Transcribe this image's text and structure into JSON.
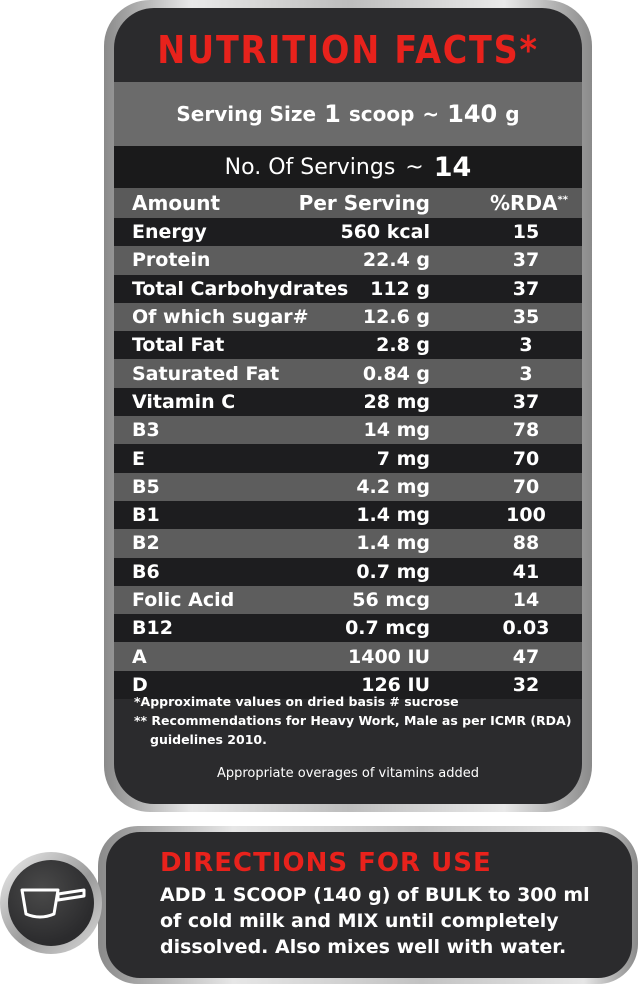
{
  "title": "NUTRITION FACTS*",
  "serving_size": {
    "label": "Serving Size",
    "amount": "1",
    "unit": "scoop",
    "approx": "~",
    "weight": "140",
    "weight_unit": "g"
  },
  "servings": {
    "label": "No. Of Servings",
    "approx": "~",
    "value": "14"
  },
  "table": {
    "headers": {
      "amount": "Amount",
      "per_serving": "Per Serving",
      "rda": "%RDA",
      "rda_mark": "**"
    },
    "rows": [
      {
        "name": "Energy",
        "value": "560 kcal",
        "rda": "15"
      },
      {
        "name": "Protein",
        "value": "22.4 g",
        "rda": "37"
      },
      {
        "name": "Total Carbohydrates",
        "value": "112 g",
        "rda": "37"
      },
      {
        "name": "Of which sugar#",
        "value": "12.6 g",
        "rda": "35"
      },
      {
        "name": "Total Fat",
        "value": "2.8 g",
        "rda": "3"
      },
      {
        "name": "Saturated Fat",
        "value": "0.84 g",
        "rda": "3"
      },
      {
        "name": "Vitamin C",
        "value": "28 mg",
        "rda": "37"
      },
      {
        "name": "B3",
        "value": "14 mg",
        "rda": "78"
      },
      {
        "name": "E",
        "value": "7 mg",
        "rda": "70"
      },
      {
        "name": "B5",
        "value": "4.2 mg",
        "rda": "70"
      },
      {
        "name": "B1",
        "value": "1.4 mg",
        "rda": "100"
      },
      {
        "name": "B2",
        "value": "1.4 mg",
        "rda": "88"
      },
      {
        "name": "B6",
        "value": "0.7 mg",
        "rda": "41"
      },
      {
        "name": "Folic Acid",
        "value": "56 mcg",
        "rda": "14"
      },
      {
        "name": "B12",
        "value": "0.7 mcg",
        "rda": "0.03"
      },
      {
        "name": "A",
        "value": "1400 IU",
        "rda": "47"
      },
      {
        "name": "D",
        "value": "126 IU",
        "rda": "32"
      }
    ]
  },
  "notes": {
    "approx": "*Approximate values on dried basis # sucrose",
    "rec_line1": "** Recommendations for Heavy Work, Male as per ICMR (RDA)",
    "rec_line2": "guidelines 2010.",
    "overage": "Appropriate overages of vitamins added"
  },
  "directions": {
    "title": "DIRECTIONS FOR USE",
    "line1": "ADD 1 SCOOP (140 g) of BULK to 300 ml",
    "line2": "of cold milk and MIX until completely",
    "line3": "dissolved. Also mixes well with water.",
    "icon": "scoop-icon"
  },
  "colors": {
    "accent_red": "#e8221c",
    "panel_dark": "#2b2b2d",
    "row_dark": "#1d1d1f",
    "row_gray": "#5d5d5d"
  }
}
